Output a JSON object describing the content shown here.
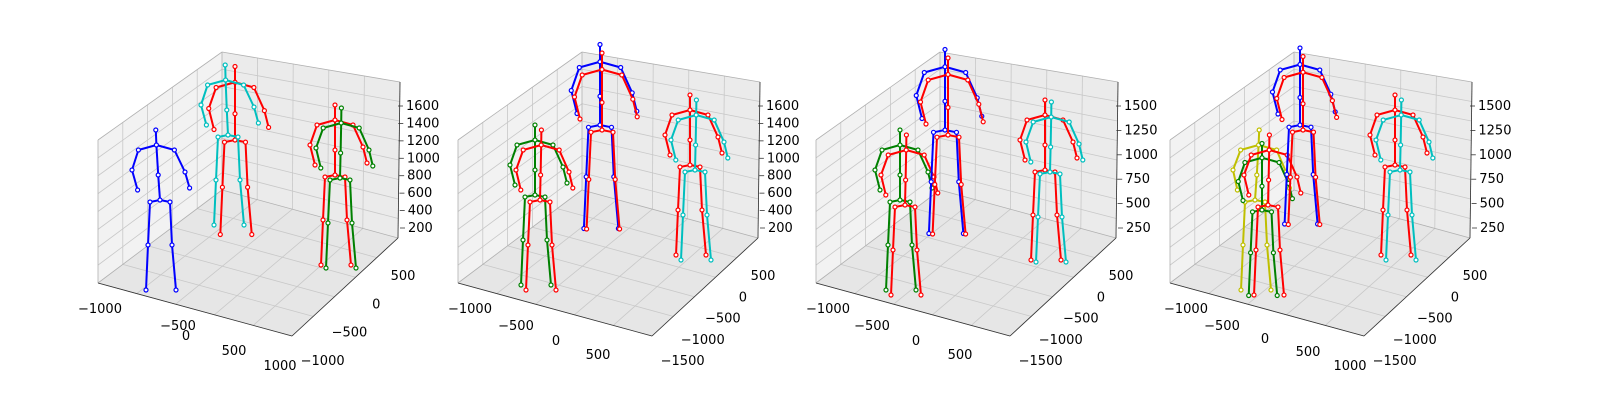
{
  "chart_data": [
    {
      "type": "3d-skeleton",
      "x_ticks": [
        "−1000",
        "−500",
        "0",
        "500",
        "1000"
      ],
      "y_ticks": [
        "500",
        "0",
        "−500",
        "−1000"
      ],
      "z_ticks": [
        "1600",
        "1400",
        "1200",
        "1000",
        "800",
        "600",
        "400",
        "200"
      ],
      "skeleton_colors": [
        "#0000ff",
        "#ff0000",
        "#00bfbf",
        "#ff0000",
        "#008000"
      ]
    },
    {
      "type": "3d-skeleton",
      "x_ticks": [
        "−1000",
        "−500",
        "0",
        "500"
      ],
      "y_ticks": [
        "500",
        "0",
        "−500",
        "−1000",
        "−1500"
      ],
      "z_ticks": [
        "1600",
        "1400",
        "1200",
        "1000",
        "800",
        "600",
        "400",
        "200"
      ],
      "skeleton_colors": [
        "#008000",
        "#ff0000",
        "#0000ff",
        "#ff0000",
        "#ff0000",
        "#00bfbf"
      ]
    },
    {
      "type": "3d-skeleton",
      "x_ticks": [
        "−1000",
        "−500",
        "0",
        "500"
      ],
      "y_ticks": [
        "500",
        "0",
        "−500",
        "−1000",
        "−1500"
      ],
      "z_ticks": [
        "1500",
        "1250",
        "1000",
        "750",
        "500",
        "250"
      ],
      "skeleton_colors": [
        "#008000",
        "#ff0000",
        "#0000ff",
        "#ff0000",
        "#ff0000",
        "#00bfbf"
      ]
    },
    {
      "type": "3d-skeleton",
      "x_ticks": [
        "−1000",
        "−500",
        "0",
        "500",
        "1000"
      ],
      "y_ticks": [
        "500",
        "0",
        "−500",
        "−1000",
        "−1500"
      ],
      "z_ticks": [
        "1500",
        "1250",
        "1000",
        "750",
        "500",
        "250"
      ],
      "skeleton_colors": [
        "#bfbf00",
        "#008000",
        "#ff0000",
        "#0000ff",
        "#ff0000",
        "#ff0000",
        "#00bfbf"
      ]
    }
  ]
}
